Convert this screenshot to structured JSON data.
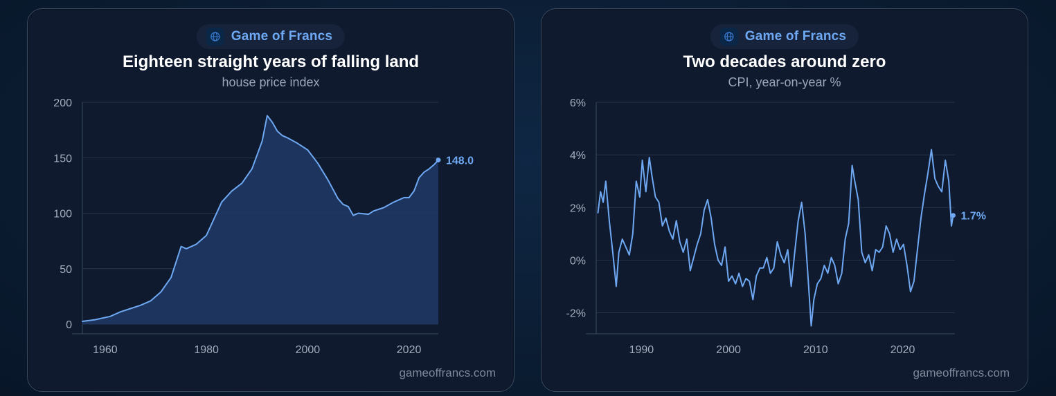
{
  "colors": {
    "line": "#6ea8f2",
    "area": "#1e3a66",
    "grid": "#263348",
    "tick_text": "#a3adbd"
  },
  "cards": [
    {
      "brand": "Game of Francs",
      "brand_icon": "globe-icon",
      "watermark": "gameoffrancs.com"
    },
    {
      "brand": "Game of Francs",
      "brand_icon": "globe-icon",
      "watermark": "gameoffrancs.com"
    }
  ],
  "chart_data": [
    {
      "type": "area",
      "title": "Eighteen straight years of falling land",
      "subtitle": "house price index",
      "xlabel": "",
      "ylabel": "",
      "xlim": [
        1955.5,
        2025.8
      ],
      "ylim": [
        0,
        200
      ],
      "yticks": [
        0,
        50,
        100,
        150,
        200
      ],
      "ytick_labels": [
        "0",
        "50",
        "100",
        "150",
        "200"
      ],
      "xticks": [
        1960,
        1980,
        2000,
        2020
      ],
      "xtick_labels": [
        "1960",
        "1980",
        "2000",
        "2020"
      ],
      "grid": true,
      "end_label": "148.0",
      "series": [
        {
          "x": [
            1955.5,
            1958,
            1961,
            1963,
            1965,
            1967,
            1969,
            1971,
            1973,
            1975,
            1976,
            1978,
            1980,
            1983,
            1985,
            1987,
            1989,
            1991,
            1992,
            1993,
            1994,
            1995,
            1996,
            1998,
            2000,
            2002,
            2004,
            2006,
            2007,
            2008,
            2009,
            2010,
            2012,
            2013,
            2015,
            2017,
            2019,
            2020,
            2021,
            2022,
            2023,
            2024,
            2025,
            2025.8
          ],
          "y": [
            2.5,
            4,
            7,
            11,
            14,
            17,
            21,
            29,
            42,
            70,
            68,
            72,
            80,
            110,
            120,
            127,
            140,
            165,
            188,
            182,
            174,
            170,
            168,
            163,
            157,
            145,
            130,
            113,
            108,
            106,
            98,
            100,
            99,
            102,
            105,
            110,
            114,
            114,
            120,
            132,
            137,
            140,
            144,
            148
          ]
        }
      ]
    },
    {
      "type": "line",
      "title": "Two decades around zero",
      "subtitle": "CPI, year-on-year %",
      "xlabel": "",
      "ylabel": "",
      "xlim": [
        1984.8,
        2026.0
      ],
      "ylim": [
        -2.8,
        6
      ],
      "yticks": [
        -2,
        0,
        2,
        4,
        6
      ],
      "ytick_labels": [
        "-2%",
        "0%",
        "2%",
        "4%",
        "6%"
      ],
      "xticks": [
        1990,
        2000,
        2010,
        2020
      ],
      "xtick_labels": [
        "1990",
        "2000",
        "2010",
        "2020"
      ],
      "grid": true,
      "end_label": "1.7%",
      "series": [
        {
          "x": [
            1985.0,
            1985.3,
            1985.6,
            1985.9,
            1986.3,
            1986.7,
            1987.1,
            1987.4,
            1987.8,
            1988.2,
            1988.6,
            1989.0,
            1989.4,
            1989.8,
            1990.1,
            1990.5,
            1990.9,
            1991.2,
            1991.6,
            1992.0,
            1992.4,
            1992.8,
            1993.2,
            1993.6,
            1994.0,
            1994.4,
            1994.8,
            1995.2,
            1995.6,
            1996.0,
            1996.4,
            1996.8,
            1997.2,
            1997.6,
            1998.0,
            1998.4,
            1998.8,
            1999.2,
            1999.6,
            2000.0,
            2000.4,
            2000.8,
            2001.2,
            2001.6,
            2002.0,
            2002.4,
            2002.8,
            2003.2,
            2003.6,
            2004.0,
            2004.4,
            2004.8,
            2005.2,
            2005.6,
            2006.0,
            2006.4,
            2006.8,
            2007.2,
            2007.6,
            2008.0,
            2008.4,
            2008.8,
            2009.2,
            2009.5,
            2009.8,
            2010.2,
            2010.6,
            2011.0,
            2011.4,
            2011.8,
            2012.2,
            2012.6,
            2013.0,
            2013.4,
            2013.8,
            2014.2,
            2014.5,
            2014.9,
            2015.3,
            2015.7,
            2016.1,
            2016.5,
            2016.9,
            2017.3,
            2017.7,
            2018.1,
            2018.5,
            2018.9,
            2019.3,
            2019.7,
            2020.1,
            2020.5,
            2020.9,
            2021.3,
            2021.7,
            2022.1,
            2022.5,
            2022.9,
            2023.3,
            2023.7,
            2024.1,
            2024.5,
            2024.9,
            2025.3,
            2025.6,
            2025.8
          ],
          "y": [
            1.8,
            2.6,
            2.2,
            3.0,
            1.5,
            0.3,
            -1.0,
            0.3,
            0.8,
            0.5,
            0.2,
            1.0,
            3.0,
            2.4,
            3.8,
            2.6,
            3.9,
            3.2,
            2.4,
            2.2,
            1.3,
            1.6,
            1.1,
            0.8,
            1.5,
            0.7,
            0.3,
            0.8,
            -0.4,
            0.1,
            0.6,
            1.0,
            1.9,
            2.3,
            1.6,
            0.6,
            0.0,
            -0.2,
            0.5,
            -0.8,
            -0.6,
            -0.9,
            -0.5,
            -1.0,
            -0.7,
            -0.8,
            -1.5,
            -0.6,
            -0.3,
            -0.3,
            0.1,
            -0.5,
            -0.3,
            0.7,
            0.2,
            -0.1,
            0.4,
            -1.0,
            0.3,
            1.5,
            2.2,
            1.0,
            -1.0,
            -2.5,
            -1.5,
            -0.9,
            -0.7,
            -0.2,
            -0.5,
            0.1,
            -0.2,
            -0.9,
            -0.5,
            0.8,
            1.4,
            3.6,
            3.0,
            2.3,
            0.3,
            -0.1,
            0.2,
            -0.4,
            0.4,
            0.3,
            0.5,
            1.3,
            1.0,
            0.3,
            0.8,
            0.4,
            0.6,
            -0.2,
            -1.2,
            -0.8,
            0.4,
            1.6,
            2.5,
            3.3,
            4.2,
            3.1,
            2.8,
            2.6,
            3.8,
            3.0,
            1.3,
            1.7
          ]
        }
      ]
    }
  ]
}
